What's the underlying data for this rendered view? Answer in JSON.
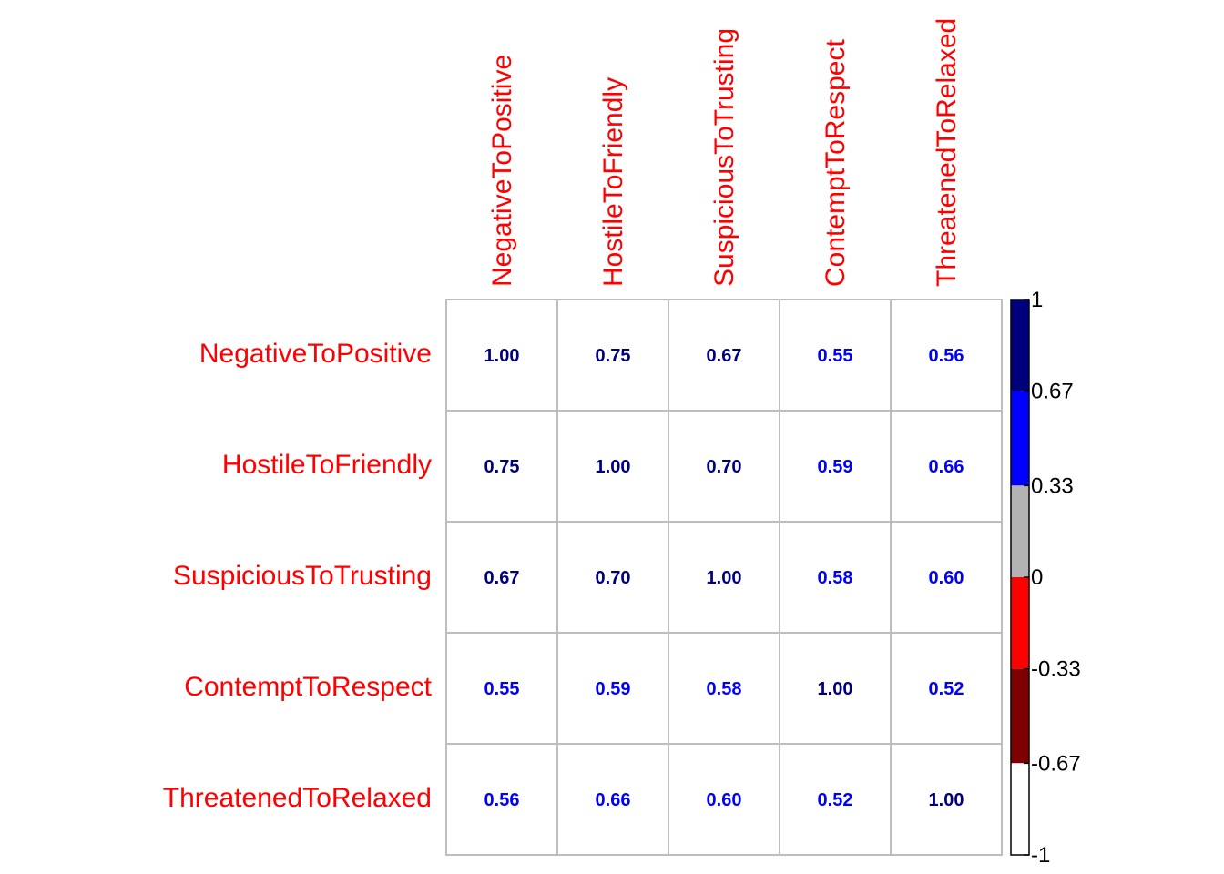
{
  "chart_data": {
    "type": "heatmap",
    "variables": [
      "NegativeToPositive",
      "HostileToFriendly",
      "SuspiciousToTrusting",
      "ContemptToRespect",
      "ThreatenedToRelaxed"
    ],
    "matrix": [
      [
        1.0,
        0.75,
        0.67,
        0.55,
        0.56
      ],
      [
        0.75,
        1.0,
        0.7,
        0.59,
        0.66
      ],
      [
        0.67,
        0.7,
        1.0,
        0.58,
        0.6
      ],
      [
        0.55,
        0.59,
        0.58,
        1.0,
        0.52
      ],
      [
        0.56,
        0.66,
        0.6,
        0.52,
        1.0
      ]
    ],
    "value_labels": [
      [
        "1.00",
        "0.75",
        "0.67",
        "0.55",
        "0.56"
      ],
      [
        "0.75",
        "1.00",
        "0.70",
        "0.59",
        "0.66"
      ],
      [
        "0.67",
        "0.70",
        "1.00",
        "0.58",
        "0.60"
      ],
      [
        "0.55",
        "0.59",
        "0.58",
        "1.00",
        "0.52"
      ],
      [
        "0.56",
        "0.66",
        "0.60",
        "0.52",
        "1.00"
      ]
    ],
    "label_color": "#ff0000",
    "grid_color": "#bebebe",
    "colorbar": {
      "range": [
        -1,
        1
      ],
      "tick_values": [
        1,
        0.67,
        0.33,
        0,
        -0.33,
        -0.67,
        -1
      ],
      "tick_labels": [
        "1",
        "0.67",
        "0.33",
        "0",
        "-0.33",
        "-0.67",
        "-1"
      ],
      "bands": [
        {
          "from": 0.67,
          "to": 1,
          "color": "#00007f"
        },
        {
          "from": 0.33,
          "to": 0.67,
          "color": "#0000ff"
        },
        {
          "from": 0,
          "to": 0.33,
          "color": "#b3b3b3"
        },
        {
          "from": -0.33,
          "to": 0,
          "color": "#ff0000"
        },
        {
          "from": -0.67,
          "to": -0.33,
          "color": "#7f0000"
        },
        {
          "from": -1,
          "to": -0.67,
          "color": "#ffffff"
        }
      ]
    }
  }
}
